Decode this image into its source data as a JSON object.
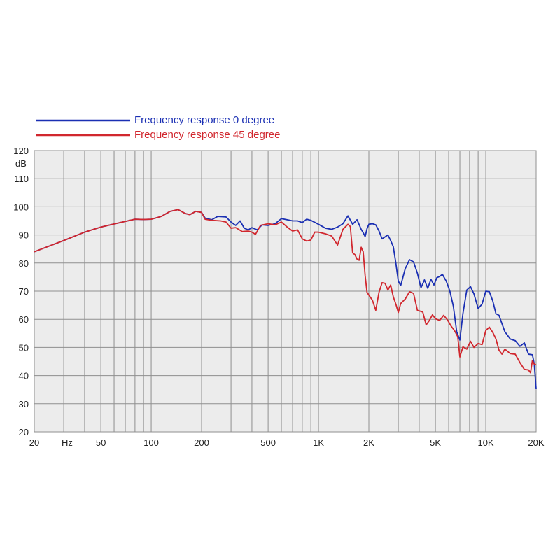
{
  "chart_data": {
    "type": "line",
    "title": "",
    "xlabel": "",
    "ylabel": "",
    "x_scale": "log",
    "xlim": [
      20,
      20000
    ],
    "ylim": [
      20,
      120
    ],
    "grid": true,
    "legend_position": "top-left",
    "y_unit_label": "dB",
    "x_unit_label": "Hz",
    "x_ticks": [
      {
        "value": 20,
        "label": "20"
      },
      {
        "value": 50,
        "label": "50"
      },
      {
        "value": 100,
        "label": "100"
      },
      {
        "value": 200,
        "label": "200"
      },
      {
        "value": 500,
        "label": "500"
      },
      {
        "value": 1000,
        "label": "1K"
      },
      {
        "value": 2000,
        "label": "2K"
      },
      {
        "value": 5000,
        "label": "5K"
      },
      {
        "value": 10000,
        "label": "10K"
      },
      {
        "value": 20000,
        "label": "20K"
      }
    ],
    "y_ticks": [
      20,
      30,
      40,
      50,
      60,
      70,
      80,
      90,
      100,
      110,
      120
    ],
    "series": [
      {
        "name": "Frequency response 0 degree",
        "color": "#1a2fb3",
        "points": [
          [
            20,
            84
          ],
          [
            30,
            88
          ],
          [
            40,
            91
          ],
          [
            50,
            92.8
          ],
          [
            60,
            93.9
          ],
          [
            70,
            94.8
          ],
          [
            80,
            95.6
          ],
          [
            90,
            95.5
          ],
          [
            100,
            95.6
          ],
          [
            115,
            96.6
          ],
          [
            130,
            98.4
          ],
          [
            145,
            99
          ],
          [
            160,
            97.6
          ],
          [
            170,
            97.2
          ],
          [
            185,
            98.4
          ],
          [
            200,
            98
          ],
          [
            210,
            96
          ],
          [
            230,
            95.4
          ],
          [
            250,
            96.6
          ],
          [
            280,
            96.4
          ],
          [
            300,
            94.6
          ],
          [
            320,
            93.4
          ],
          [
            340,
            95
          ],
          [
            360,
            92.4
          ],
          [
            380,
            91.8
          ],
          [
            400,
            92.6
          ],
          [
            430,
            91.8
          ],
          [
            460,
            93.6
          ],
          [
            500,
            93.4
          ],
          [
            550,
            94
          ],
          [
            600,
            95.8
          ],
          [
            650,
            95.4
          ],
          [
            700,
            95
          ],
          [
            750,
            95
          ],
          [
            800,
            94.4
          ],
          [
            850,
            95.6
          ],
          [
            900,
            95.2
          ],
          [
            1000,
            93.8
          ],
          [
            1100,
            92.4
          ],
          [
            1200,
            92
          ],
          [
            1300,
            92.8
          ],
          [
            1400,
            94
          ],
          [
            1500,
            96.8
          ],
          [
            1600,
            93.8
          ],
          [
            1650,
            94.6
          ],
          [
            1700,
            95.4
          ],
          [
            1800,
            92
          ],
          [
            1850,
            90.8
          ],
          [
            1900,
            89.4
          ],
          [
            1950,
            92.2
          ],
          [
            2000,
            93.8
          ],
          [
            2100,
            94
          ],
          [
            2200,
            93.6
          ],
          [
            2300,
            91.4
          ],
          [
            2400,
            88.6
          ],
          [
            2600,
            90
          ],
          [
            2700,
            88
          ],
          [
            2800,
            85.8
          ],
          [
            2900,
            80
          ],
          [
            3000,
            73.6
          ],
          [
            3100,
            72
          ],
          [
            3300,
            78
          ],
          [
            3500,
            81.2
          ],
          [
            3700,
            80.4
          ],
          [
            3900,
            76.4
          ],
          [
            4100,
            71.2
          ],
          [
            4300,
            74
          ],
          [
            4500,
            71
          ],
          [
            4700,
            74.2
          ],
          [
            4900,
            72.2
          ],
          [
            5100,
            74.8
          ],
          [
            5300,
            75.2
          ],
          [
            5500,
            76
          ],
          [
            5800,
            73.6
          ],
          [
            6100,
            70
          ],
          [
            6400,
            64.6
          ],
          [
            6700,
            55.6
          ],
          [
            7000,
            52.6
          ],
          [
            7300,
            62
          ],
          [
            7700,
            70.4
          ],
          [
            8100,
            71.6
          ],
          [
            8500,
            69
          ],
          [
            9000,
            63.8
          ],
          [
            9500,
            65.4
          ],
          [
            10000,
            70
          ],
          [
            10500,
            69.8
          ],
          [
            11000,
            66.6
          ],
          [
            11500,
            62
          ],
          [
            12000,
            61.4
          ],
          [
            12500,
            58.4
          ],
          [
            13000,
            55.6
          ],
          [
            14000,
            53
          ],
          [
            15000,
            52.4
          ],
          [
            16000,
            50.4
          ],
          [
            17000,
            51.6
          ],
          [
            18000,
            47.6
          ],
          [
            19000,
            47.4
          ],
          [
            19500,
            44
          ],
          [
            20000,
            35.2
          ]
        ]
      },
      {
        "name": "Frequency response 45 degree",
        "color": "#d1272e",
        "points": [
          [
            20,
            84
          ],
          [
            30,
            88
          ],
          [
            40,
            91
          ],
          [
            50,
            92.8
          ],
          [
            60,
            93.9
          ],
          [
            70,
            94.8
          ],
          [
            80,
            95.6
          ],
          [
            90,
            95.5
          ],
          [
            100,
            95.6
          ],
          [
            115,
            96.6
          ],
          [
            130,
            98.4
          ],
          [
            145,
            99
          ],
          [
            160,
            97.6
          ],
          [
            170,
            97.2
          ],
          [
            185,
            98.4
          ],
          [
            200,
            98
          ],
          [
            210,
            95.6
          ],
          [
            230,
            95.2
          ],
          [
            260,
            95
          ],
          [
            280,
            94.6
          ],
          [
            300,
            92.4
          ],
          [
            320,
            92.6
          ],
          [
            350,
            91.2
          ],
          [
            380,
            91.4
          ],
          [
            400,
            91
          ],
          [
            420,
            90.2
          ],
          [
            450,
            93.4
          ],
          [
            500,
            94
          ],
          [
            550,
            93.6
          ],
          [
            600,
            94.6
          ],
          [
            650,
            92.8
          ],
          [
            700,
            91.4
          ],
          [
            750,
            91.8
          ],
          [
            800,
            88.6
          ],
          [
            850,
            87.8
          ],
          [
            900,
            88.2
          ],
          [
            950,
            91
          ],
          [
            1000,
            91
          ],
          [
            1100,
            90.4
          ],
          [
            1200,
            89.6
          ],
          [
            1300,
            86.4
          ],
          [
            1400,
            92
          ],
          [
            1500,
            93.8
          ],
          [
            1550,
            93
          ],
          [
            1600,
            83.6
          ],
          [
            1650,
            83
          ],
          [
            1700,
            81.4
          ],
          [
            1750,
            81
          ],
          [
            1800,
            85.6
          ],
          [
            1850,
            84
          ],
          [
            1900,
            75.6
          ],
          [
            1950,
            69.6
          ],
          [
            2000,
            68.6
          ],
          [
            2100,
            66.8
          ],
          [
            2200,
            63.2
          ],
          [
            2300,
            69.6
          ],
          [
            2400,
            73
          ],
          [
            2500,
            72.8
          ],
          [
            2600,
            70.4
          ],
          [
            2700,
            72.2
          ],
          [
            2800,
            68
          ],
          [
            2900,
            65.4
          ],
          [
            3000,
            62.4
          ],
          [
            3100,
            65.6
          ],
          [
            3300,
            67.2
          ],
          [
            3500,
            69.8
          ],
          [
            3700,
            69.2
          ],
          [
            3900,
            63.2
          ],
          [
            4200,
            62.6
          ],
          [
            4400,
            58
          ],
          [
            4600,
            59.6
          ],
          [
            4800,
            61.6
          ],
          [
            5000,
            60.2
          ],
          [
            5300,
            59.6
          ],
          [
            5600,
            61.4
          ],
          [
            5900,
            59.8
          ],
          [
            6200,
            57.6
          ],
          [
            6500,
            56
          ],
          [
            6800,
            53.8
          ],
          [
            7000,
            46.6
          ],
          [
            7300,
            50.2
          ],
          [
            7700,
            49.4
          ],
          [
            8100,
            52.2
          ],
          [
            8500,
            50
          ],
          [
            9000,
            51.4
          ],
          [
            9500,
            51
          ],
          [
            10000,
            56
          ],
          [
            10500,
            57.2
          ],
          [
            11000,
            55.4
          ],
          [
            11500,
            53
          ],
          [
            12000,
            49
          ],
          [
            12500,
            47.6
          ],
          [
            13000,
            49.4
          ],
          [
            14000,
            47.8
          ],
          [
            15000,
            47.6
          ],
          [
            16000,
            44.6
          ],
          [
            17000,
            42.2
          ],
          [
            18000,
            42
          ],
          [
            18500,
            41
          ],
          [
            19000,
            45.4
          ],
          [
            19500,
            44
          ],
          [
            20000,
            43.8
          ]
        ]
      }
    ]
  }
}
